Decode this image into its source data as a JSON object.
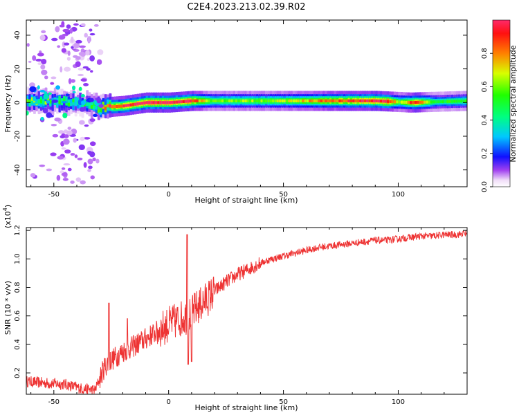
{
  "title": "C2E4.2023.213.02.39.R02",
  "chart_data": [
    {
      "type": "heatmap",
      "xlabel": "Height of straight line (km)",
      "ylabel": "Frequency (Hz)",
      "xlim": [
        -62,
        130
      ],
      "ylim": [
        -50,
        49
      ],
      "x_ticks": [
        -50,
        0,
        50,
        100
      ],
      "x_tick_labels": [
        "-50",
        "0",
        "50",
        "100"
      ],
      "y_ticks": [
        -40,
        -20,
        0,
        20,
        40
      ],
      "y_tick_labels": [
        "-40",
        "-20",
        "0",
        "20",
        "40"
      ],
      "colorbar": {
        "label": "Normalized spectral amplitude",
        "range": [
          0,
          1
        ],
        "ticks": [
          0,
          0.2,
          0.4,
          0.6,
          0.8
        ],
        "tick_labels": [
          "0.0",
          "0.2",
          "0.4",
          "0.6",
          "0.8"
        ],
        "colormap": "rainbow"
      },
      "signal_band": {
        "center_hz": [
          {
            "x": -62,
            "y": 1
          },
          {
            "x": -40,
            "y": 0
          },
          {
            "x": -30,
            "y": -3
          },
          {
            "x": -20,
            "y": -2
          },
          {
            "x": -10,
            "y": 0
          },
          {
            "x": 0,
            "y": 0
          },
          {
            "x": 10,
            "y": 1
          },
          {
            "x": 20,
            "y": 1
          },
          {
            "x": 50,
            "y": 1
          },
          {
            "x": 90,
            "y": 1
          },
          {
            "x": 105,
            "y": 0
          },
          {
            "x": 130,
            "y": 1
          }
        ],
        "peak_amplitude": [
          {
            "x": -62,
            "a": 0.5
          },
          {
            "x": -45,
            "a": 0.45
          },
          {
            "x": -35,
            "a": 0.4
          },
          {
            "x": -27,
            "a": 0.85
          },
          {
            "x": -18,
            "a": 0.95
          },
          {
            "x": -10,
            "a": 1.0
          },
          {
            "x": 0,
            "a": 1.0
          },
          {
            "x": 8,
            "a": 1.0
          },
          {
            "x": 18,
            "a": 0.6
          },
          {
            "x": 50,
            "a": 0.65
          },
          {
            "x": 65,
            "a": 0.8
          },
          {
            "x": 85,
            "a": 0.95
          },
          {
            "x": 95,
            "a": 1.0
          },
          {
            "x": 100,
            "a": 0.6
          },
          {
            "x": 107,
            "a": 0.95
          },
          {
            "x": 115,
            "a": 0.5
          },
          {
            "x": 130,
            "a": 0.55
          }
        ]
      },
      "grid": false
    },
    {
      "type": "line",
      "xlabel": "Height of straight line (km)",
      "ylabel": "SNR (10 * v/v)",
      "y_multiplier_label": "(x10",
      "y_multiplier_exponent": "4",
      "xlim": [
        -62,
        130
      ],
      "ylim": [
        0.05,
        1.22
      ],
      "x_ticks": [
        -50,
        0,
        50,
        100
      ],
      "x_tick_labels": [
        "-50",
        "0",
        "50",
        "100"
      ],
      "y_ticks": [
        0.2,
        0.4,
        0.6,
        0.8,
        1.0,
        1.2
      ],
      "y_tick_labels": [
        "0.2",
        "0.4",
        "0.6",
        "0.8",
        "1.0",
        "1.2"
      ],
      "color": "#ee3333",
      "series": [
        {
          "x": [
            -62,
            -55,
            -45,
            -38,
            -32,
            -30,
            -28,
            -26,
            -24,
            -20,
            -16,
            -12,
            -8,
            -4,
            0,
            4,
            8,
            10,
            14,
            18,
            22,
            26,
            30,
            35,
            40,
            45,
            50,
            55,
            60,
            65,
            70,
            75,
            80,
            85,
            90,
            95,
            100,
            105,
            110,
            115,
            120,
            125,
            130
          ],
          "y": [
            0.14,
            0.13,
            0.12,
            0.09,
            0.08,
            0.16,
            0.24,
            0.28,
            0.3,
            0.35,
            0.38,
            0.42,
            0.46,
            0.5,
            0.54,
            0.57,
            0.6,
            0.62,
            0.68,
            0.74,
            0.8,
            0.85,
            0.89,
            0.93,
            0.97,
            1.0,
            1.02,
            1.04,
            1.06,
            1.08,
            1.09,
            1.1,
            1.11,
            1.12,
            1.13,
            1.13,
            1.14,
            1.15,
            1.16,
            1.16,
            1.17,
            1.17,
            1.18
          ]
        }
      ],
      "spikes": [
        {
          "x": -26,
          "y": 0.69
        },
        {
          "x": -18,
          "y": 0.58
        },
        {
          "x": 8,
          "y": 1.17
        },
        {
          "x": 8.5,
          "y": 0.26
        },
        {
          "x": 10,
          "y": 0.28
        }
      ],
      "grid": false
    }
  ]
}
